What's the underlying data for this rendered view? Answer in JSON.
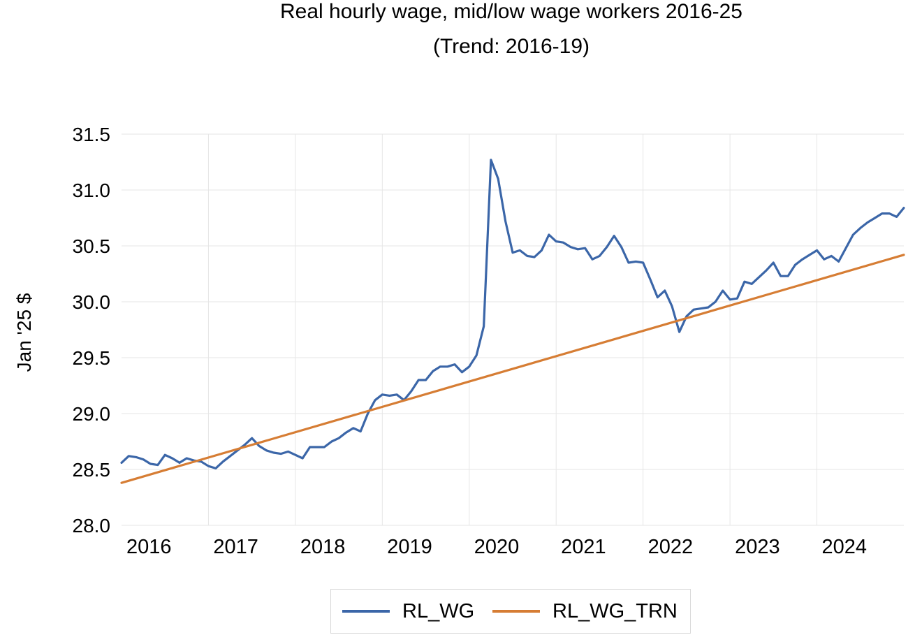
{
  "chart_data": {
    "type": "line",
    "title": "Real hourly wage, mid/low wage workers 2016-25",
    "subtitle": "(Trend: 2016-19)",
    "ylabel": "Jan '25 $",
    "ylim": [
      28.0,
      31.5
    ],
    "yticks": [
      "28.0",
      "28.5",
      "29.0",
      "29.5",
      "30.0",
      "30.5",
      "31.0",
      "31.5"
    ],
    "xlim": [
      2016.0,
      2025.0
    ],
    "xticks": [
      "2016",
      "2017",
      "2018",
      "2019",
      "2020",
      "2021",
      "2022",
      "2023",
      "2024"
    ],
    "grid": true,
    "legend_position": "bottom",
    "series": [
      {
        "name": "RL_WG",
        "color": "#3b66a8",
        "x": [
          2016.0,
          2016.083,
          2016.167,
          2016.25,
          2016.333,
          2016.417,
          2016.5,
          2016.583,
          2016.667,
          2016.75,
          2016.833,
          2016.917,
          2017.0,
          2017.083,
          2017.167,
          2017.25,
          2017.333,
          2017.417,
          2017.5,
          2017.583,
          2017.667,
          2017.75,
          2017.833,
          2017.917,
          2018.0,
          2018.083,
          2018.167,
          2018.25,
          2018.333,
          2018.417,
          2018.5,
          2018.583,
          2018.667,
          2018.75,
          2018.833,
          2018.917,
          2019.0,
          2019.083,
          2019.167,
          2019.25,
          2019.333,
          2019.417,
          2019.5,
          2019.583,
          2019.667,
          2019.75,
          2019.833,
          2019.917,
          2020.0,
          2020.083,
          2020.167,
          2020.25,
          2020.333,
          2020.417,
          2020.5,
          2020.583,
          2020.667,
          2020.75,
          2020.833,
          2020.917,
          2021.0,
          2021.083,
          2021.167,
          2021.25,
          2021.333,
          2021.417,
          2021.5,
          2021.583,
          2021.667,
          2021.75,
          2021.833,
          2021.917,
          2022.0,
          2022.083,
          2022.167,
          2022.25,
          2022.333,
          2022.417,
          2022.5,
          2022.583,
          2022.667,
          2022.75,
          2022.833,
          2022.917,
          2023.0,
          2023.083,
          2023.167,
          2023.25,
          2023.333,
          2023.417,
          2023.5,
          2023.583,
          2023.667,
          2023.75,
          2023.833,
          2023.917,
          2024.0,
          2024.083,
          2024.167,
          2024.25,
          2024.333,
          2024.417,
          2024.5,
          2024.583,
          2024.667,
          2024.75,
          2024.833,
          2024.917,
          2025.0
        ],
        "values": [
          28.56,
          28.62,
          28.61,
          28.59,
          28.55,
          28.54,
          28.63,
          28.6,
          28.56,
          28.6,
          28.58,
          28.57,
          28.53,
          28.51,
          28.57,
          28.62,
          28.67,
          28.72,
          28.78,
          28.71,
          28.67,
          28.65,
          28.64,
          28.66,
          28.63,
          28.6,
          28.7,
          28.7,
          28.7,
          28.75,
          28.78,
          28.83,
          28.87,
          28.84,
          29.0,
          29.12,
          29.17,
          29.16,
          29.17,
          29.12,
          29.2,
          29.3,
          29.3,
          29.38,
          29.42,
          29.42,
          29.44,
          29.37,
          29.42,
          29.52,
          29.78,
          31.27,
          31.1,
          30.72,
          30.44,
          30.46,
          30.41,
          30.4,
          30.46,
          30.6,
          30.54,
          30.53,
          30.49,
          30.47,
          30.48,
          30.38,
          30.41,
          30.49,
          30.59,
          30.49,
          30.35,
          30.36,
          30.35,
          30.2,
          30.04,
          30.1,
          29.96,
          29.73,
          29.87,
          29.93,
          29.94,
          29.95,
          30.0,
          30.1,
          30.02,
          30.03,
          30.18,
          30.16,
          30.22,
          30.28,
          30.35,
          30.23,
          30.23,
          30.33,
          30.38,
          30.42,
          30.46,
          30.38,
          30.41,
          30.36,
          30.48,
          30.6,
          30.66,
          30.71,
          30.75,
          30.79,
          30.79,
          30.76,
          30.84
        ]
      },
      {
        "name": "RL_WG_TRN",
        "color": "#d67d34",
        "x": [
          2016.0,
          2025.0
        ],
        "values": [
          28.38,
          30.42
        ]
      }
    ]
  }
}
